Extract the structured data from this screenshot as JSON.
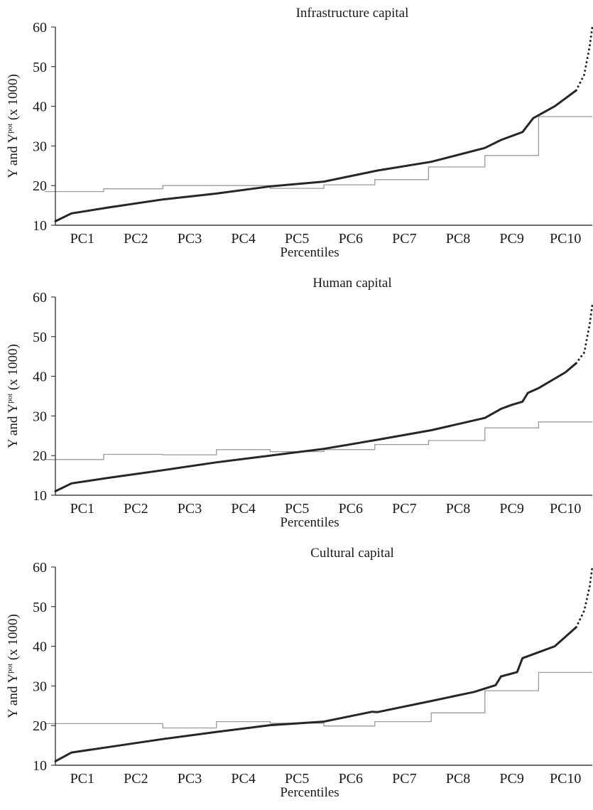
{
  "chart_data": [
    {
      "type": "line",
      "title": "Infrastructure capital",
      "xlabel": "Percentiles",
      "ylabel": {
        "prefix": "Y and Y",
        "sup": "pot",
        "suffix": " (x 1000)"
      },
      "categories": [
        "PC1",
        "PC2",
        "PC3",
        "PC4",
        "PC5",
        "PC6",
        "PC7",
        "PC8",
        "PC9",
        "PC10"
      ],
      "ylim": [
        10,
        60
      ],
      "yticks": [
        "10",
        "20",
        "30",
        "40",
        "50",
        "60"
      ],
      "xlim": [
        0,
        100
      ],
      "grid": false,
      "series": [
        {
          "style": "actual",
          "x": [
            0,
            3,
            10,
            20,
            30,
            40,
            50,
            60,
            70,
            80,
            83,
            87,
            89,
            93,
            97
          ],
          "y": [
            11,
            13,
            14.5,
            16.5,
            18,
            19.8,
            21,
            23.8,
            26,
            29.5,
            31.5,
            33.5,
            37,
            40,
            44
          ]
        },
        {
          "style": "projected",
          "x": [
            97,
            98.5,
            99.5,
            100
          ],
          "y": [
            44,
            48,
            55,
            60
          ]
        },
        {
          "style": "potential-step",
          "x": [
            -2,
            9,
            9,
            20,
            20,
            40,
            40,
            50,
            50,
            59.5,
            59.5,
            69.5,
            69.5,
            80,
            80,
            90,
            90,
            100
          ],
          "y": [
            18.5,
            18.5,
            19.2,
            19.2,
            20,
            20,
            19.3,
            19.3,
            20.2,
            20.2,
            21.5,
            21.5,
            24.7,
            24.7,
            27.6,
            27.6,
            37.4,
            37.4
          ]
        }
      ]
    },
    {
      "type": "line",
      "title": "Human capital",
      "xlabel": "Percentiles",
      "ylabel": {
        "prefix": "Y and Y",
        "sup": "pot",
        "suffix": " (x 1000)"
      },
      "categories": [
        "PC1",
        "PC2",
        "PC3",
        "PC4",
        "PC5",
        "PC6",
        "PC7",
        "PC8",
        "PC9",
        "PC10"
      ],
      "ylim": [
        10,
        60
      ],
      "yticks": [
        "10",
        "20",
        "30",
        "40",
        "50",
        "60"
      ],
      "xlim": [
        0,
        100
      ],
      "grid": false,
      "series": [
        {
          "style": "actual",
          "x": [
            0,
            3,
            10,
            20,
            30,
            40,
            50,
            60,
            70,
            80,
            83,
            85,
            87,
            88,
            90,
            95,
            97
          ],
          "y": [
            11,
            13,
            14.4,
            16.3,
            18.3,
            20,
            21.7,
            24,
            26.4,
            29.5,
            31.8,
            32.8,
            33.6,
            35.8,
            37,
            41,
            43.3
          ]
        },
        {
          "style": "projected",
          "x": [
            97,
            98.5,
            99.5,
            100
          ],
          "y": [
            43.3,
            46,
            53,
            58
          ]
        },
        {
          "style": "potential-step",
          "x": [
            -2,
            9,
            9,
            20,
            20,
            30,
            30,
            40,
            40,
            50,
            50,
            59.5,
            59.5,
            69.5,
            69.5,
            80,
            80,
            90,
            90,
            100
          ],
          "y": [
            19,
            19,
            20.3,
            20.3,
            20.2,
            20.2,
            21.5,
            21.5,
            21,
            21,
            21.5,
            21.5,
            22.8,
            22.8,
            23.8,
            23.8,
            27,
            27,
            28.5,
            28.5
          ]
        }
      ]
    },
    {
      "type": "line",
      "title": "Cultural capital",
      "xlabel": "Percentiles",
      "ylabel": {
        "prefix": "Y and Y",
        "sup": "pot",
        "suffix": " (x 1000)"
      },
      "categories": [
        "PC1",
        "PC2",
        "PC3",
        "PC4",
        "PC5",
        "PC6",
        "PC7",
        "PC8",
        "PC9",
        "PC10"
      ],
      "ylim": [
        10,
        60
      ],
      "yticks": [
        "10",
        "20",
        "30",
        "40",
        "50",
        "60"
      ],
      "xlim": [
        0,
        100
      ],
      "grid": false,
      "series": [
        {
          "style": "actual",
          "x": [
            0,
            3,
            10,
            20,
            30,
            40,
            50,
            59,
            60,
            70,
            78,
            82,
            83,
            86,
            87,
            93,
            97
          ],
          "y": [
            11,
            13.2,
            14.6,
            16.6,
            18.4,
            20.1,
            21,
            23.5,
            23.4,
            26.2,
            28.5,
            30.2,
            32.4,
            33.5,
            37,
            40,
            44.8
          ]
        },
        {
          "style": "projected",
          "x": [
            97,
            98.5,
            99.5,
            100
          ],
          "y": [
            44.8,
            49,
            55,
            60
          ]
        },
        {
          "style": "potential-step",
          "x": [
            -2,
            20,
            20,
            30,
            30,
            40,
            40,
            50,
            50,
            59.5,
            59.5,
            70,
            70,
            80,
            80,
            90,
            90,
            100
          ],
          "y": [
            20.5,
            20.5,
            19.4,
            19.4,
            21,
            21,
            20.6,
            20.6,
            19.9,
            19.9,
            21,
            21,
            23.2,
            23.2,
            28.8,
            28.8,
            33.4,
            33.4
          ]
        }
      ]
    }
  ]
}
